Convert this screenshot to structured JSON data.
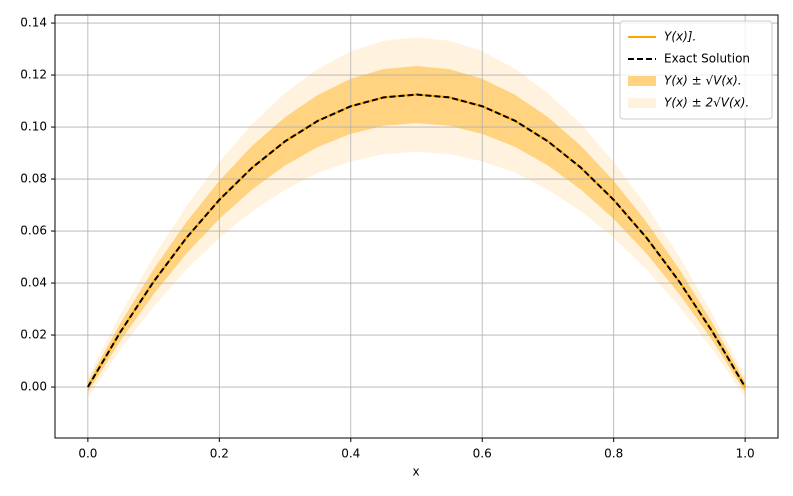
{
  "chart_data": {
    "type": "line",
    "xlabel": "x",
    "grid": true,
    "legend": "upper right",
    "xlim": [
      -0.05,
      1.05
    ],
    "xticks": [
      {
        "value": 0,
        "label": "0.0"
      },
      {
        "value": 0.2,
        "label": "0.2"
      },
      {
        "value": 0.4,
        "label": "0.4"
      },
      {
        "value": 0.6,
        "label": "0.6"
      },
      {
        "value": 0.8,
        "label": "0.8"
      },
      {
        "value": 1,
        "label": "1.0"
      }
    ],
    "ylim": [
      -0.0196,
      0.1431
    ],
    "yticks": [
      {
        "value": 0,
        "label": "0.00"
      },
      {
        "value": 0.02,
        "label": "0.02"
      },
      {
        "value": 0.04,
        "label": "0.04"
      },
      {
        "value": 0.06,
        "label": "0.06"
      },
      {
        "value": 0.08,
        "label": "0.08"
      },
      {
        "value": 0.1,
        "label": "0.10"
      },
      {
        "value": 0.12,
        "label": "0.12"
      },
      {
        "value": 0.14,
        "label": "0.14"
      }
    ],
    "x": [
      0,
      0.05,
      0.1,
      0.15,
      0.2,
      0.25,
      0.3,
      0.35,
      0.4,
      0.45,
      0.5,
      0.55,
      0.6,
      0.65,
      0.7,
      0.75,
      0.8,
      0.85,
      0.9,
      0.95,
      1
    ],
    "series": [
      {
        "name": "Y(x)].",
        "color": "#ffa500",
        "dashed": false,
        "values": [
          0,
          0.0214,
          0.0405,
          0.0574,
          0.072,
          0.0844,
          0.0945,
          0.1024,
          0.108,
          0.1114,
          0.1125,
          0.1114,
          0.108,
          0.1024,
          0.0945,
          0.0844,
          0.072,
          0.0574,
          0.0405,
          0.0214,
          0
        ]
      },
      {
        "name": "Exact Solution",
        "color": "#000000",
        "dashed": true,
        "values": [
          0,
          0.0214,
          0.0405,
          0.0574,
          0.072,
          0.0844,
          0.0945,
          0.1024,
          0.108,
          0.1114,
          0.1125,
          0.1114,
          0.108,
          0.1024,
          0.0945,
          0.0844,
          0.072,
          0.0574,
          0.0405,
          0.0214,
          0
        ]
      }
    ],
    "bands": [
      {
        "name": "Y(x) ± √V(x).",
        "color": "#ffd37f",
        "lower": [
          -0.002,
          0.018,
          0.0357,
          0.0513,
          0.0647,
          0.076,
          0.0852,
          0.0924,
          0.0974,
          0.1005,
          0.1015,
          0.1005,
          0.0974,
          0.0924,
          0.0852,
          0.076,
          0.0647,
          0.0513,
          0.0357,
          0.018,
          -0.002
        ],
        "upper": [
          0.002,
          0.0248,
          0.0453,
          0.0635,
          0.0793,
          0.0928,
          0.1038,
          0.1124,
          0.1186,
          0.1223,
          0.1235,
          0.1223,
          0.1186,
          0.1124,
          0.1038,
          0.0928,
          0.0793,
          0.0635,
          0.0453,
          0.0248,
          0.002
        ]
      },
      {
        "name": "Y(x) ± 2√V(x).",
        "color": "#fff3df",
        "lower": [
          -0.004,
          0.0146,
          0.0309,
          0.0452,
          0.0574,
          0.0676,
          0.0759,
          0.0824,
          0.0868,
          0.0896,
          0.0905,
          0.0896,
          0.0868,
          0.0824,
          0.0759,
          0.0676,
          0.0574,
          0.0452,
          0.0309,
          0.0146,
          -0.004
        ],
        "upper": [
          0.004,
          0.0282,
          0.0501,
          0.0696,
          0.0866,
          0.1012,
          0.1131,
          0.1224,
          0.1292,
          0.1332,
          0.1345,
          0.1332,
          0.1292,
          0.1224,
          0.1131,
          0.1012,
          0.0866,
          0.0696,
          0.0501,
          0.0282,
          0.004
        ]
      }
    ]
  }
}
